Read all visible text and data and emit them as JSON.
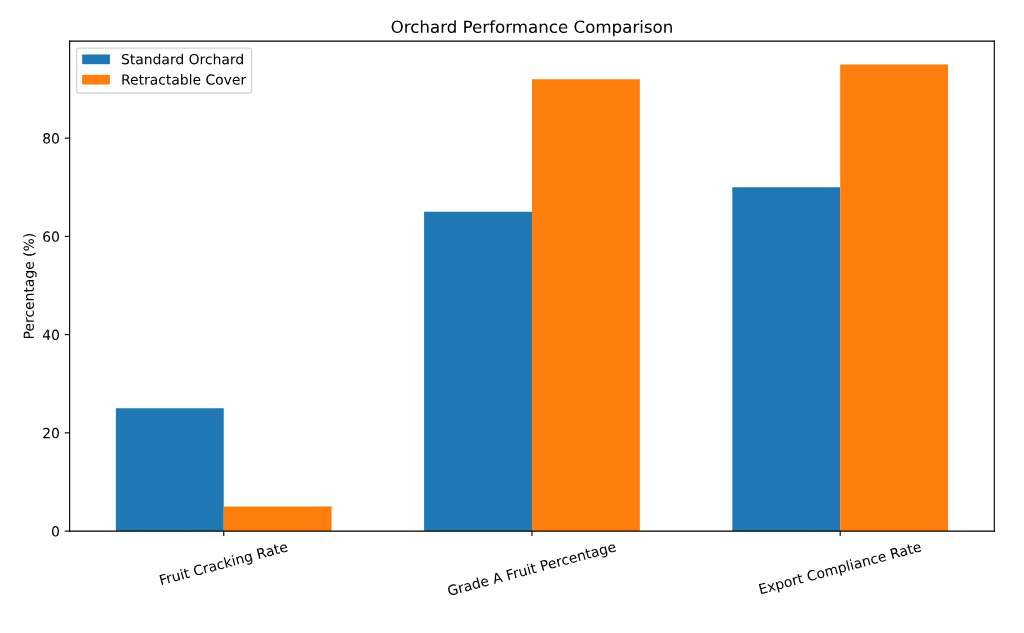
{
  "chart_data": {
    "type": "bar",
    "title": "Orchard Performance Comparison",
    "ylabel": "Percentage (%)",
    "categories": [
      "Fruit Cracking Rate",
      "Grade A Fruit Percentage",
      "Export Compliance Rate"
    ],
    "series": [
      {
        "name": "Standard Orchard",
        "color": "#1f77b4",
        "values": [
          25,
          65,
          70
        ]
      },
      {
        "name": "Retractable Cover",
        "color": "#ff7f0e",
        "values": [
          5,
          92,
          95
        ]
      }
    ],
    "ylim": [
      0,
      99.75
    ],
    "yticks": [
      0,
      20,
      40,
      60,
      80
    ],
    "grid": false,
    "legend": "top left"
  }
}
